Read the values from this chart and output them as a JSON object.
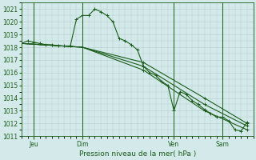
{
  "bg_color": "#d4eaea",
  "grid_color": "#b0cccc",
  "line_color": "#1a5c1a",
  "title": "Pression niveau de la mer( hPa )",
  "ylim": [
    1011,
    1021.5
  ],
  "yticks": [
    1011,
    1012,
    1013,
    1014,
    1015,
    1016,
    1017,
    1018,
    1019,
    1020,
    1021
  ],
  "xtick_labels": [
    "Jeu",
    "Dim",
    "Ven",
    "Sam"
  ],
  "xtick_positions": [
    2,
    10,
    25,
    33
  ],
  "xlim": [
    0,
    38
  ],
  "vlines": [
    2,
    10,
    25,
    33
  ],
  "series": [
    {
      "x": [
        0,
        1,
        2,
        3,
        4,
        5,
        6,
        7,
        8,
        9,
        10,
        11,
        12,
        13,
        14,
        15,
        16,
        17,
        18,
        19,
        20,
        21,
        22,
        23,
        24,
        25,
        26,
        27,
        28,
        29,
        30,
        31,
        32,
        33,
        34,
        35,
        36,
        37
      ],
      "y": [
        1018.3,
        1018.5,
        1018.4,
        1018.3,
        1018.2,
        1018.2,
        1018.1,
        1018.1,
        1018.1,
        1020.2,
        1020.5,
        1020.5,
        1021.0,
        1020.8,
        1020.5,
        1020.0,
        1018.7,
        1018.5,
        1018.2,
        1017.8,
        1016.5,
        1016.0,
        1015.8,
        1015.3,
        1015.0,
        1013.0,
        1014.5,
        1014.3,
        1013.8,
        1013.5,
        1013.1,
        1012.8,
        1012.5,
        1012.5,
        1012.2,
        1011.5,
        1011.4,
        1012.1
      ]
    },
    {
      "x": [
        0,
        10,
        20,
        30,
        37
      ],
      "y": [
        1018.3,
        1018.0,
        1016.5,
        1013.5,
        1011.8
      ]
    },
    {
      "x": [
        0,
        10,
        20,
        30,
        37
      ],
      "y": [
        1018.3,
        1018.0,
        1016.8,
        1014.0,
        1012.0
      ]
    },
    {
      "x": [
        0,
        10,
        20,
        30,
        37
      ],
      "y": [
        1018.3,
        1018.0,
        1016.2,
        1013.0,
        1011.5
      ]
    }
  ]
}
